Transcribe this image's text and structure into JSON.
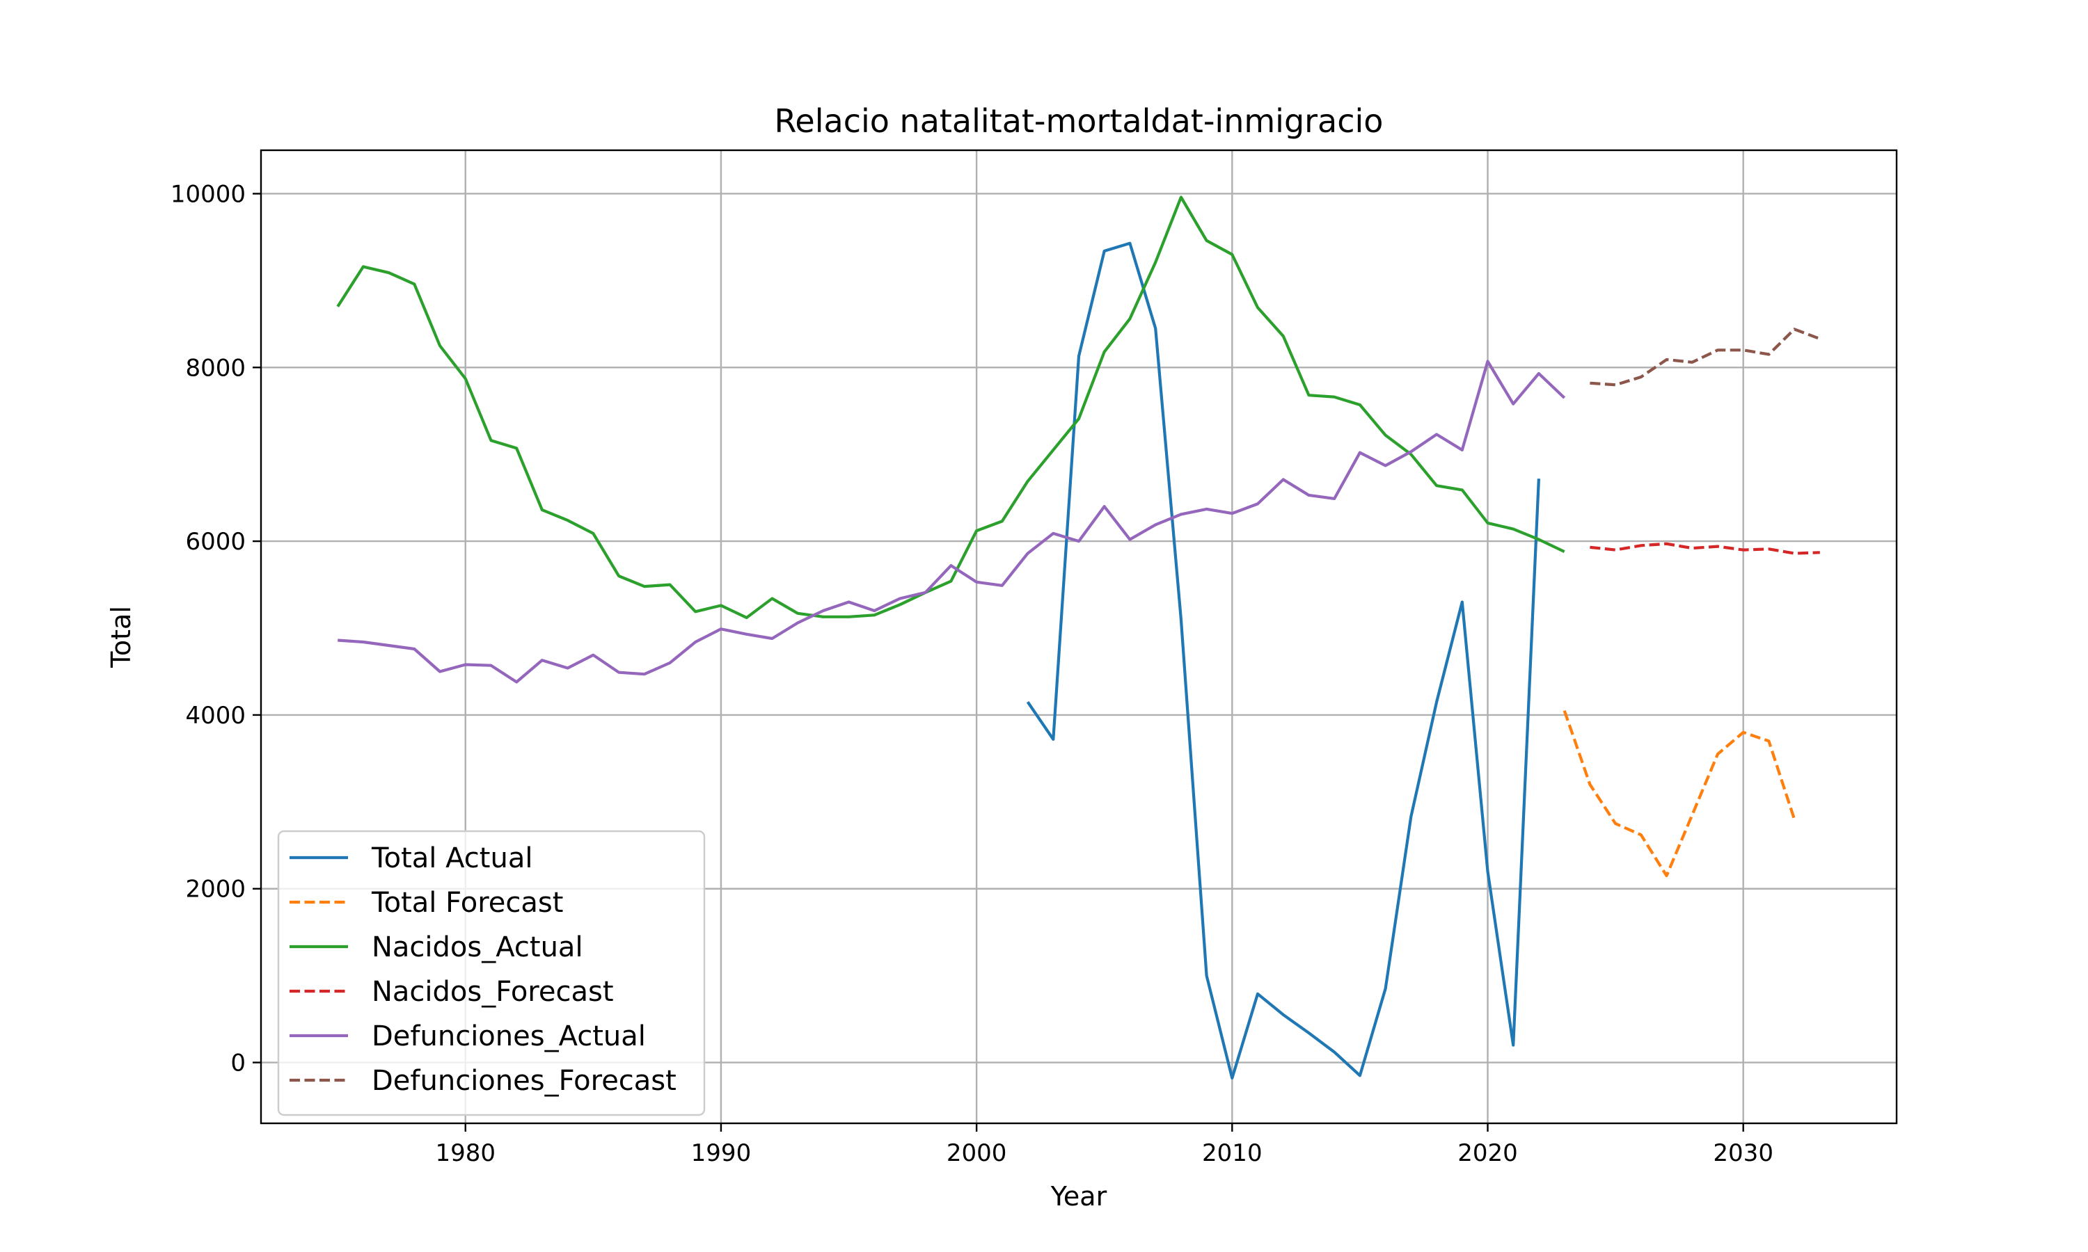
{
  "chart_data": {
    "type": "line",
    "title": "Relacio natalitat-mortaldat-inmigracio",
    "xlabel": "Year",
    "ylabel": "Total",
    "xlim": [
      1972,
      2036
    ],
    "ylim": [
      -700,
      10500
    ],
    "xticks": [
      1980,
      1990,
      2000,
      2010,
      2020,
      2030
    ],
    "yticks": [
      0,
      2000,
      4000,
      6000,
      8000,
      10000
    ],
    "grid": true,
    "legend_position": "lower-left",
    "series": [
      {
        "name": "Total Actual",
        "color": "#1f77b4",
        "style": "solid",
        "x": [
          2002,
          2003,
          2004,
          2005,
          2006,
          2007,
          2008,
          2009,
          2010,
          2011,
          2012,
          2013,
          2014,
          2015,
          2016,
          2017,
          2018,
          2019,
          2020,
          2021,
          2022
        ],
        "y": [
          4150,
          3720,
          8130,
          9340,
          9430,
          8450,
          5100,
          1000,
          -180,
          790,
          550,
          340,
          120,
          -150,
          850,
          2830,
          4150,
          5300,
          2200,
          200,
          6720
        ]
      },
      {
        "name": "Total Forecast",
        "color": "#ff7f0e",
        "style": "dashed",
        "x": [
          2023,
          2024,
          2025,
          2026,
          2027,
          2028,
          2029,
          2030,
          2031,
          2032
        ],
        "y": [
          4050,
          3200,
          2750,
          2620,
          2150,
          2850,
          3550,
          3800,
          3700,
          2800
        ]
      },
      {
        "name": "Nacidos_Actual",
        "color": "#2ca02c",
        "style": "solid",
        "x": [
          1975,
          1976,
          1977,
          1978,
          1979,
          1980,
          1981,
          1982,
          1983,
          1984,
          1985,
          1986,
          1987,
          1988,
          1989,
          1990,
          1991,
          1992,
          1993,
          1994,
          1995,
          1996,
          1997,
          1998,
          1999,
          2000,
          2001,
          2002,
          2003,
          2004,
          2005,
          2006,
          2007,
          2008,
          2009,
          2010,
          2011,
          2012,
          2013,
          2014,
          2015,
          2016,
          2017,
          2018,
          2019,
          2020,
          2021,
          2022,
          2023
        ],
        "y": [
          8700,
          9160,
          9090,
          8960,
          8250,
          7870,
          7160,
          7070,
          6360,
          6240,
          6090,
          5600,
          5480,
          5500,
          5190,
          5260,
          5120,
          5340,
          5170,
          5130,
          5130,
          5150,
          5270,
          5410,
          5540,
          6120,
          6230,
          6690,
          7050,
          7410,
          8180,
          8560,
          9210,
          9960,
          9460,
          9300,
          8690,
          8360,
          7680,
          7660,
          7570,
          7220,
          7000,
          6640,
          6590,
          6210,
          6140,
          6020,
          5880
        ]
      },
      {
        "name": "Nacidos_Forecast",
        "color": "#d62728",
        "style": "dashed",
        "x": [
          2024,
          2025,
          2026,
          2027,
          2028,
          2029,
          2030,
          2031,
          2032,
          2033
        ],
        "y": [
          5930,
          5900,
          5950,
          5970,
          5920,
          5940,
          5900,
          5910,
          5860,
          5870
        ]
      },
      {
        "name": "Defunciones_Actual",
        "color": "#9467bd",
        "style": "solid",
        "x": [
          1975,
          1976,
          1977,
          1978,
          1979,
          1980,
          1981,
          1982,
          1983,
          1984,
          1985,
          1986,
          1987,
          1988,
          1989,
          1990,
          1991,
          1992,
          1993,
          1994,
          1995,
          1996,
          1997,
          1998,
          1999,
          2000,
          2001,
          2002,
          2003,
          2004,
          2005,
          2006,
          2007,
          2008,
          2009,
          2010,
          2011,
          2012,
          2013,
          2014,
          2015,
          2016,
          2017,
          2018,
          2019,
          2020,
          2021,
          2022,
          2023
        ],
        "y": [
          4860,
          4840,
          4800,
          4760,
          4500,
          4580,
          4570,
          4380,
          4630,
          4540,
          4690,
          4490,
          4470,
          4600,
          4840,
          4990,
          4930,
          4880,
          5060,
          5200,
          5300,
          5200,
          5340,
          5410,
          5720,
          5530,
          5490,
          5860,
          6090,
          6000,
          6400,
          6020,
          6190,
          6310,
          6370,
          6320,
          6430,
          6710,
          6530,
          6490,
          7020,
          6870,
          7030,
          7230,
          7050,
          8070,
          7580,
          7930,
          7650
        ]
      },
      {
        "name": "Defunciones_Forecast",
        "color": "#8c564b",
        "style": "dashed",
        "x": [
          2024,
          2025,
          2026,
          2027,
          2028,
          2029,
          2030,
          2031,
          2032,
          2033
        ],
        "y": [
          7820,
          7800,
          7890,
          8090,
          8060,
          8200,
          8200,
          8150,
          8440,
          8330
        ]
      }
    ]
  }
}
